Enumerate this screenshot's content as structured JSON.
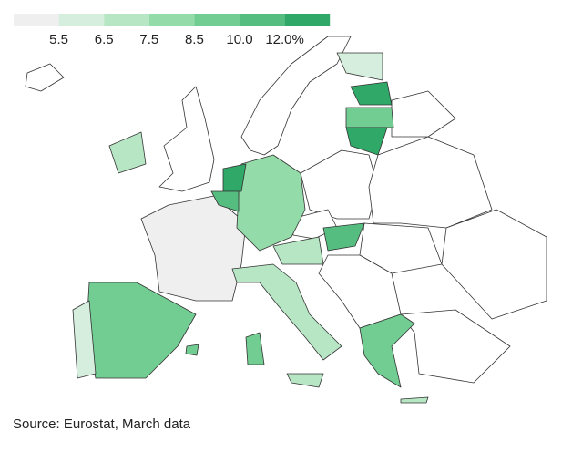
{
  "legend": {
    "colors": [
      "#efefef",
      "#d5eedd",
      "#b6e6c4",
      "#93dba9",
      "#72cd93",
      "#55bd7f",
      "#30a868"
    ],
    "ticks": [
      5.5,
      6.5,
      7.5,
      8.5,
      {
        "value": 10,
        "label": "10.0"
      },
      {
        "value": 12,
        "label": "12.0%"
      }
    ]
  },
  "source": "Source: Eurostat, March data"
}
